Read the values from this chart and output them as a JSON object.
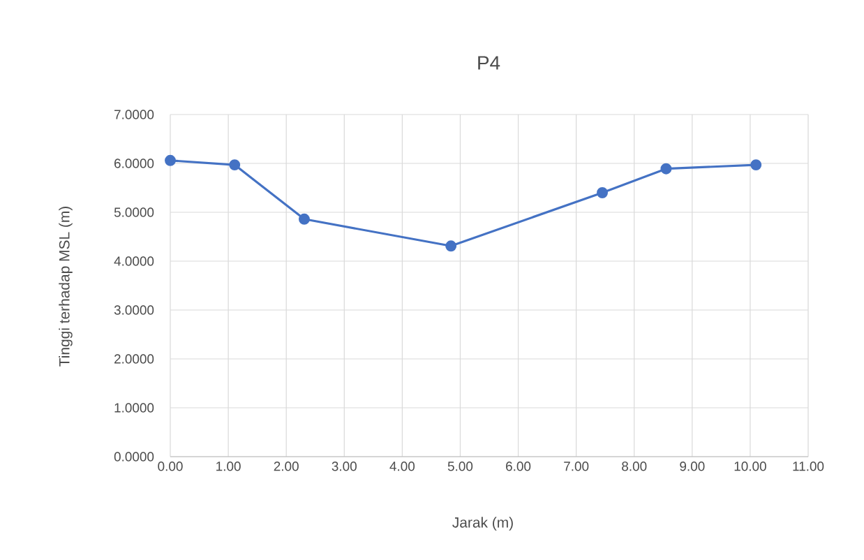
{
  "chart_data": {
    "type": "line",
    "title": "P4",
    "xlabel": "Jarak (m)",
    "ylabel": "Tinggi terhadap MSL (m)",
    "series": [
      {
        "color": "#4472c4",
        "x": [
          0,
          1.11,
          2.31,
          4.84,
          7.45,
          8.55,
          10.1
        ],
        "values": [
          6.06,
          5.97,
          4.86,
          4.31,
          5.4,
          5.89,
          5.97
        ]
      }
    ],
    "xlim": [
      0,
      11
    ],
    "xticks": [
      {
        "value": 0,
        "label": "0.00"
      },
      {
        "value": 1,
        "label": "1.00"
      },
      {
        "value": 2,
        "label": "2.00"
      },
      {
        "value": 3,
        "label": "3.00"
      },
      {
        "value": 4,
        "label": "4.00"
      },
      {
        "value": 5,
        "label": "5.00"
      },
      {
        "value": 6,
        "label": "6.00"
      },
      {
        "value": 7,
        "label": "7.00"
      },
      {
        "value": 8,
        "label": "8.00"
      },
      {
        "value": 9,
        "label": "9.00"
      },
      {
        "value": 10,
        "label": "10.00"
      },
      {
        "value": 11,
        "label": "11.00"
      }
    ],
    "ylim": [
      0,
      7
    ],
    "yticks": [
      {
        "value": 0,
        "label": "0.0000"
      },
      {
        "value": 1,
        "label": "1.0000"
      },
      {
        "value": 2,
        "label": "2.0000"
      },
      {
        "value": 3,
        "label": "3.0000"
      },
      {
        "value": 4,
        "label": "4.0000"
      },
      {
        "value": 5,
        "label": "5.0000"
      },
      {
        "value": 6,
        "label": "6.0000"
      },
      {
        "value": 7,
        "label": "7.0000"
      }
    ],
    "grid": true,
    "marker": "circle",
    "line_style": "solid"
  }
}
